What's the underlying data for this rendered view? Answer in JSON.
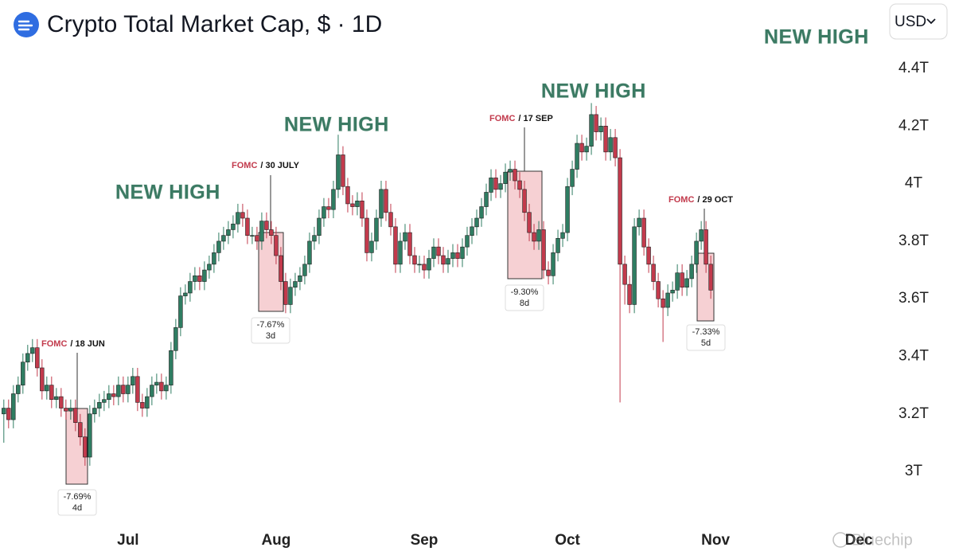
{
  "chart_data": {
    "type": "candlestick",
    "title": "Crypto Total Market Cap, $ · 1D",
    "currency": "USD",
    "watermark": "Bluechip",
    "up_color": "#2f7d62",
    "down_color": "#c23a4c",
    "xlim": [
      -0.8,
      183.3
    ],
    "ylim": [
      2.826,
      4.638
    ],
    "xticks": [
      {
        "value": 26,
        "label": "Jul"
      },
      {
        "value": 57,
        "label": "Aug"
      },
      {
        "value": 88,
        "label": "Sep"
      },
      {
        "value": 118,
        "label": "Oct"
      },
      {
        "value": 149,
        "label": "Nov"
      },
      {
        "value": 179,
        "label": "Dec"
      }
    ],
    "yticks": [
      {
        "value": 3,
        "label": "3T"
      },
      {
        "value": 3.2,
        "label": "3.2T"
      },
      {
        "value": 3.4,
        "label": "3.4T"
      },
      {
        "value": 3.6,
        "label": "3.6T"
      },
      {
        "value": 3.8,
        "label": "3.8T"
      },
      {
        "value": 4,
        "label": "4T"
      },
      {
        "value": 4.2,
        "label": "4.2T"
      },
      {
        "value": 4.4,
        "label": "4.4T"
      }
    ],
    "new_high_labels": [
      "NEW HIGH",
      "NEW HIGH",
      "NEW HIGH",
      "NEW HIGH"
    ],
    "fomc_events": [
      {
        "label": "FOMC",
        "date": "/ 18 JUN",
        "change": "-7.69%",
        "duration": "4d"
      },
      {
        "label": "FOMC",
        "date": "/ 30 JULY",
        "change": "-7.67%",
        "duration": "3d"
      },
      {
        "label": "FOMC",
        "date": "/ 17 SEP",
        "change": "-9.30%",
        "duration": "8d"
      },
      {
        "label": "FOMC",
        "date": "/ 29 OCT",
        "change": "-7.33%",
        "duration": "5d"
      }
    ],
    "x": [
      0,
      1,
      2,
      3,
      4,
      5,
      6,
      7,
      8,
      9,
      10,
      11,
      12,
      13,
      14,
      15,
      16,
      17,
      18,
      19,
      20,
      21,
      22,
      23,
      24,
      25,
      26,
      27,
      28,
      29,
      30,
      31,
      32,
      33,
      34,
      35,
      36,
      37,
      38,
      39,
      40,
      41,
      42,
      43,
      44,
      45,
      46,
      47,
      48,
      49,
      50,
      51,
      52,
      53,
      54,
      55,
      56,
      57,
      58,
      59,
      60,
      61,
      62,
      63,
      64,
      65,
      66,
      67,
      68,
      69,
      70,
      71,
      72,
      73,
      74,
      75,
      76,
      77,
      78,
      79,
      80,
      81,
      82,
      83,
      84,
      85,
      86,
      87,
      88,
      89,
      90,
      91,
      92,
      93,
      94,
      95,
      96,
      97,
      98,
      99,
      100,
      101,
      102,
      103,
      104,
      105,
      106,
      107,
      108,
      109,
      110,
      111,
      112,
      113,
      114,
      115,
      116,
      117,
      118,
      119,
      120,
      121,
      122,
      123,
      124,
      125,
      126,
      127,
      128,
      129,
      130,
      131,
      132,
      133,
      134,
      135,
      136,
      137,
      138,
      139,
      140,
      141,
      142,
      143,
      144,
      145,
      146,
      147,
      148
    ],
    "open": [
      3.2,
      3.22,
      3.18,
      3.27,
      3.3,
      3.38,
      3.41,
      3.43,
      3.36,
      3.28,
      3.3,
      3.25,
      3.26,
      3.22,
      3.21,
      3.22,
      3.17,
      3.12,
      3.05,
      3.2,
      3.22,
      3.24,
      3.25,
      3.27,
      3.26,
      3.3,
      3.27,
      3.3,
      3.33,
      3.24,
      3.22,
      3.26,
      3.3,
      3.31,
      3.28,
      3.3,
      3.42,
      3.5,
      3.61,
      3.62,
      3.66,
      3.68,
      3.66,
      3.7,
      3.72,
      3.76,
      3.8,
      3.82,
      3.84,
      3.86,
      3.9,
      3.88,
      3.82,
      3.82,
      3.8,
      3.87,
      3.84,
      3.82,
      3.75,
      3.66,
      3.58,
      3.64,
      3.66,
      3.68,
      3.72,
      3.8,
      3.82,
      3.88,
      3.92,
      3.91,
      3.98,
      4.1,
      3.99,
      3.93,
      3.92,
      3.94,
      3.88,
      3.76,
      3.8,
      3.88,
      3.98,
      3.9,
      3.85,
      3.72,
      3.8,
      3.83,
      3.75,
      3.72,
      3.72,
      3.7,
      3.74,
      3.78,
      3.75,
      3.72,
      3.74,
      3.76,
      3.74,
      3.78,
      3.82,
      3.85,
      3.88,
      3.92,
      3.97,
      4.02,
      3.98,
      4.0,
      4.04,
      4.05,
      4.01,
      3.98,
      3.9,
      3.83,
      3.8,
      3.84,
      3.7,
      3.68,
      3.76,
      3.81,
      3.83,
      3.99,
      4.05,
      4.14,
      4.11,
      4.13,
      4.24,
      4.18,
      4.2,
      4.11,
      4.16,
      4.09,
      3.72,
      3.65,
      3.58,
      3.85,
      3.88,
      3.78,
      3.72,
      3.66,
      3.6,
      3.57,
      3.62,
      3.63,
      3.69,
      3.64,
      3.67,
      3.72,
      3.8,
      3.84,
      3.72
    ],
    "high": [
      3.25,
      3.25,
      3.3,
      3.33,
      3.41,
      3.44,
      3.46,
      3.46,
      3.39,
      3.33,
      3.33,
      3.29,
      3.29,
      3.25,
      3.25,
      3.25,
      3.2,
      3.15,
      3.23,
      3.25,
      3.27,
      3.28,
      3.3,
      3.3,
      3.33,
      3.33,
      3.33,
      3.36,
      3.36,
      3.27,
      3.29,
      3.33,
      3.34,
      3.34,
      3.33,
      3.45,
      3.53,
      3.64,
      3.65,
      3.69,
      3.71,
      3.71,
      3.73,
      3.75,
      3.79,
      3.83,
      3.85,
      3.87,
      3.89,
      3.93,
      3.93,
      3.91,
      3.85,
      3.85,
      3.9,
      3.9,
      3.87,
      3.85,
      3.78,
      3.69,
      3.67,
      3.69,
      3.71,
      3.75,
      3.83,
      3.85,
      3.91,
      3.95,
      3.95,
      4.01,
      4.17,
      4.13,
      4.02,
      3.96,
      3.97,
      3.97,
      3.91,
      3.83,
      3.91,
      4.01,
      4.01,
      3.93,
      3.88,
      3.83,
      3.86,
      3.86,
      3.78,
      3.75,
      3.75,
      3.77,
      3.81,
      3.81,
      3.78,
      3.77,
      3.79,
      3.79,
      3.81,
      3.85,
      3.88,
      3.91,
      3.95,
      4.0,
      4.05,
      4.05,
      4.03,
      4.07,
      4.08,
      4.08,
      4.04,
      4.01,
      3.93,
      3.86,
      3.87,
      3.87,
      3.73,
      3.79,
      3.84,
      3.86,
      4.02,
      4.08,
      4.17,
      4.17,
      4.16,
      4.28,
      4.27,
      4.23,
      4.23,
      4.19,
      4.19,
      4.12,
      3.75,
      3.68,
      3.88,
      3.91,
      3.91,
      3.81,
      3.75,
      3.69,
      3.63,
      3.65,
      3.66,
      3.72,
      3.72,
      3.7,
      3.75,
      3.83,
      3.87,
      3.87,
      3.75
    ],
    "low": [
      3.1,
      3.15,
      3.15,
      3.24,
      3.27,
      3.35,
      3.38,
      3.33,
      3.25,
      3.25,
      3.22,
      3.22,
      3.19,
      3.18,
      3.18,
      3.14,
      3.09,
      3.02,
      3.02,
      3.17,
      3.19,
      3.21,
      3.22,
      3.23,
      3.23,
      3.24,
      3.24,
      3.27,
      3.21,
      3.19,
      3.19,
      3.23,
      3.27,
      3.25,
      3.25,
      3.27,
      3.39,
      3.47,
      3.58,
      3.59,
      3.63,
      3.63,
      3.63,
      3.67,
      3.69,
      3.73,
      3.77,
      3.79,
      3.81,
      3.83,
      3.85,
      3.79,
      3.79,
      3.77,
      3.77,
      3.81,
      3.79,
      3.72,
      3.63,
      3.55,
      3.55,
      3.61,
      3.63,
      3.65,
      3.69,
      3.77,
      3.79,
      3.85,
      3.88,
      3.88,
      3.95,
      3.96,
      3.9,
      3.89,
      3.89,
      3.85,
      3.73,
      3.73,
      3.77,
      3.85,
      3.87,
      3.82,
      3.69,
      3.69,
      3.77,
      3.72,
      3.69,
      3.69,
      3.67,
      3.67,
      3.71,
      3.72,
      3.69,
      3.69,
      3.71,
      3.71,
      3.71,
      3.75,
      3.79,
      3.82,
      3.85,
      3.89,
      3.94,
      3.95,
      3.95,
      3.97,
      4.01,
      3.98,
      3.95,
      3.87,
      3.8,
      3.77,
      3.77,
      3.67,
      3.65,
      3.65,
      3.73,
      3.78,
      3.8,
      3.96,
      4.02,
      4.08,
      4.08,
      4.1,
      4.15,
      4.15,
      4.08,
      4.08,
      4.06,
      3.24,
      3.58,
      3.55,
      3.55,
      3.82,
      3.75,
      3.69,
      3.63,
      3.57,
      3.45,
      3.54,
      3.59,
      3.6,
      3.61,
      3.61,
      3.64,
      3.69,
      3.77,
      3.69,
      3.6
    ],
    "close": [
      3.22,
      3.18,
      3.27,
      3.3,
      3.38,
      3.41,
      3.43,
      3.36,
      3.28,
      3.3,
      3.25,
      3.26,
      3.22,
      3.21,
      3.22,
      3.17,
      3.12,
      3.05,
      3.2,
      3.22,
      3.24,
      3.25,
      3.27,
      3.26,
      3.3,
      3.27,
      3.3,
      3.33,
      3.24,
      3.22,
      3.26,
      3.3,
      3.31,
      3.28,
      3.3,
      3.42,
      3.5,
      3.61,
      3.62,
      3.66,
      3.68,
      3.66,
      3.7,
      3.72,
      3.76,
      3.8,
      3.82,
      3.84,
      3.86,
      3.9,
      3.88,
      3.82,
      3.82,
      3.8,
      3.87,
      3.84,
      3.82,
      3.75,
      3.66,
      3.58,
      3.64,
      3.66,
      3.68,
      3.72,
      3.8,
      3.82,
      3.88,
      3.92,
      3.91,
      3.98,
      4.1,
      3.99,
      3.93,
      3.92,
      3.94,
      3.88,
      3.76,
      3.8,
      3.88,
      3.98,
      3.9,
      3.85,
      3.72,
      3.8,
      3.83,
      3.75,
      3.72,
      3.72,
      3.7,
      3.74,
      3.78,
      3.75,
      3.72,
      3.74,
      3.76,
      3.74,
      3.78,
      3.82,
      3.85,
      3.88,
      3.92,
      3.97,
      4.02,
      3.98,
      4.0,
      4.04,
      4.05,
      4.01,
      3.98,
      3.9,
      3.83,
      3.8,
      3.84,
      3.7,
      3.68,
      3.76,
      3.81,
      3.83,
      3.99,
      4.05,
      4.14,
      4.11,
      4.13,
      4.24,
      4.18,
      4.2,
      4.11,
      4.16,
      4.09,
      3.72,
      3.65,
      3.58,
      3.85,
      3.88,
      3.78,
      3.72,
      3.66,
      3.6,
      3.57,
      3.62,
      3.63,
      3.69,
      3.64,
      3.67,
      3.72,
      3.8,
      3.84,
      3.72,
      3.63
    ]
  }
}
